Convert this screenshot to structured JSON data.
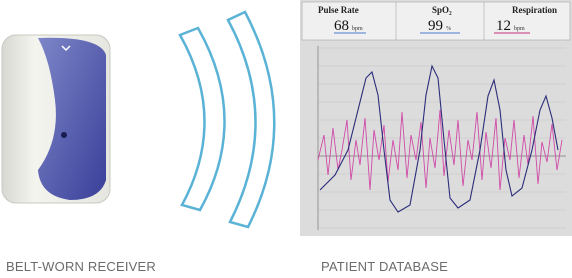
{
  "monitor": {
    "readings": [
      {
        "label": "Pulse Rate",
        "value": 68,
        "unit": "bpm"
      },
      {
        "label": "SpO₂",
        "value": 99,
        "unit": "%"
      },
      {
        "label": "Respiration",
        "value": 12,
        "unit": "bpm"
      }
    ]
  },
  "captions": {
    "receiver": "BELT-WORN RECEIVER",
    "database": "PATIENT DATABASE"
  }
}
